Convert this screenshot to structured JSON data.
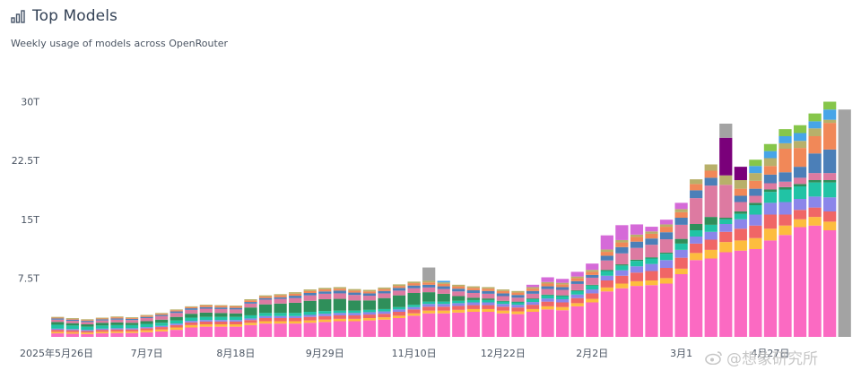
{
  "header": {
    "title": "Top Models",
    "subtitle": "Weekly usage of models across OpenRouter",
    "icon": "bar-chart-icon"
  },
  "watermark": {
    "text": "@想象研究所",
    "icon": "weibo-logo-icon"
  },
  "chart_data": {
    "type": "bar",
    "stacked": true,
    "title": "Top Models",
    "subtitle": "Weekly usage of models across OpenRouter",
    "xlabel": "",
    "ylabel": "",
    "ylim": [
      0,
      32
    ],
    "yticks": [
      {
        "value": 7.5,
        "label": "7.5T"
      },
      {
        "value": 15,
        "label": "15T"
      },
      {
        "value": 22.5,
        "label": "22.5T"
      },
      {
        "value": 30,
        "label": "30T"
      }
    ],
    "xtick_labels": [
      {
        "index": 0,
        "label": "2025年5月26日"
      },
      {
        "index": 6,
        "label": "7月7日"
      },
      {
        "index": 12,
        "label": "8月18日"
      },
      {
        "index": 18,
        "label": "9月29日"
      },
      {
        "index": 24,
        "label": "11月10日"
      },
      {
        "index": 30,
        "label": "12月22日"
      },
      {
        "index": 36,
        "label": "2月2日"
      },
      {
        "index": 42,
        "label": "3月1"
      },
      {
        "index": 48,
        "label": "4月27日"
      }
    ],
    "grid": false,
    "legend": "none",
    "palette": [
      "#fb6ac2",
      "#fdbd3e",
      "#f06666",
      "#8b86ea",
      "#21c3a5",
      "#2f8f5a",
      "#dd7aa1",
      "#4b7fb8",
      "#f18858",
      "#b8b06a",
      "#d56ad8",
      "#47a5e8",
      "#86c64a",
      "#7a007a",
      "#a3a3a3"
    ],
    "values": [
      [
        0.45,
        0.2,
        0.25,
        0.15,
        0.5,
        0.35,
        0.3,
        0.15,
        0.1,
        0.1
      ],
      [
        0.4,
        0.2,
        0.25,
        0.15,
        0.45,
        0.3,
        0.3,
        0.15,
        0.1,
        0.1
      ],
      [
        0.35,
        0.2,
        0.2,
        0.15,
        0.4,
        0.3,
        0.3,
        0.15,
        0.1,
        0.1
      ],
      [
        0.45,
        0.2,
        0.25,
        0.15,
        0.4,
        0.35,
        0.3,
        0.15,
        0.1,
        0.1
      ],
      [
        0.5,
        0.2,
        0.25,
        0.15,
        0.4,
        0.35,
        0.35,
        0.15,
        0.15,
        0.1
      ],
      [
        0.5,
        0.2,
        0.25,
        0.15,
        0.4,
        0.3,
        0.35,
        0.15,
        0.1,
        0.1
      ],
      [
        0.6,
        0.25,
        0.25,
        0.15,
        0.4,
        0.35,
        0.4,
        0.15,
        0.15,
        0.1
      ],
      [
        0.7,
        0.25,
        0.3,
        0.15,
        0.4,
        0.4,
        0.45,
        0.15,
        0.15,
        0.1
      ],
      [
        0.9,
        0.3,
        0.3,
        0.2,
        0.4,
        0.45,
        0.5,
        0.2,
        0.15,
        0.1
      ],
      [
        1.2,
        0.3,
        0.35,
        0.2,
        0.4,
        0.5,
        0.5,
        0.2,
        0.15,
        0.1
      ],
      [
        1.3,
        0.3,
        0.35,
        0.2,
        0.4,
        0.55,
        0.5,
        0.2,
        0.2,
        0.1
      ],
      [
        1.3,
        0.3,
        0.35,
        0.2,
        0.4,
        0.5,
        0.5,
        0.2,
        0.2,
        0.1
      ],
      [
        1.3,
        0.3,
        0.35,
        0.2,
        0.4,
        0.45,
        0.5,
        0.2,
        0.2,
        0.1
      ],
      [
        1.5,
        0.3,
        0.35,
        0.2,
        0.4,
        1.0,
        0.5,
        0.2,
        0.2,
        0.15
      ],
      [
        1.7,
        0.3,
        0.4,
        0.25,
        0.4,
        1.1,
        0.6,
        0.2,
        0.2,
        0.15
      ],
      [
        1.7,
        0.3,
        0.4,
        0.25,
        0.4,
        1.2,
        0.6,
        0.2,
        0.25,
        0.15
      ],
      [
        1.7,
        0.3,
        0.4,
        0.25,
        0.4,
        1.3,
        0.6,
        0.3,
        0.25,
        0.2
      ],
      [
        1.8,
        0.3,
        0.45,
        0.25,
        0.4,
        1.4,
        0.7,
        0.3,
        0.25,
        0.2
      ],
      [
        1.9,
        0.3,
        0.45,
        0.3,
        0.35,
        1.5,
        0.7,
        0.3,
        0.25,
        0.2
      ],
      [
        2.0,
        0.3,
        0.45,
        0.3,
        0.3,
        1.5,
        0.7,
        0.35,
        0.25,
        0.2
      ],
      [
        2.0,
        0.3,
        0.45,
        0.3,
        0.3,
        1.3,
        0.7,
        0.3,
        0.25,
        0.2
      ],
      [
        2.1,
        0.3,
        0.45,
        0.3,
        0.3,
        1.2,
        0.6,
        0.3,
        0.25,
        0.2
      ],
      [
        2.2,
        0.3,
        0.45,
        0.3,
        0.3,
        1.4,
        0.6,
        0.3,
        0.25,
        0.2
      ],
      [
        2.4,
        0.3,
        0.5,
        0.3,
        0.3,
        1.5,
        0.6,
        0.35,
        0.25,
        0.2
      ],
      [
        2.7,
        0.3,
        0.5,
        0.3,
        0.3,
        1.5,
        0.6,
        0.35,
        0.3,
        0.2
      ],
      [
        3.0,
        0.35,
        0.5,
        0.35,
        0.3,
        1.2,
        0.6,
        0.35,
        0.3,
        0.2,
        0,
        0,
        0,
        0,
        1.7
      ],
      [
        3.0,
        0.35,
        0.5,
        0.35,
        0.3,
        1.0,
        0.6,
        0.35,
        0.3,
        0.2,
        0,
        0.2
      ],
      [
        3.1,
        0.35,
        0.5,
        0.35,
        0.3,
        0.6,
        0.6,
        0.35,
        0.3,
        0.2
      ],
      [
        3.2,
        0.35,
        0.5,
        0.35,
        0.3,
        0.3,
        0.6,
        0.35,
        0.3,
        0.2
      ],
      [
        3.2,
        0.35,
        0.5,
        0.35,
        0.3,
        0.2,
        0.6,
        0.35,
        0.3,
        0.2
      ],
      [
        3.0,
        0.35,
        0.5,
        0.35,
        0.3,
        0.1,
        0.6,
        0.35,
        0.3,
        0.2
      ],
      [
        2.9,
        0.35,
        0.5,
        0.35,
        0.3,
        0.1,
        0.5,
        0.35,
        0.3,
        0.2
      ],
      [
        3.2,
        0.35,
        0.55,
        0.35,
        0.35,
        0.1,
        0.6,
        0.35,
        0.3,
        0.2,
        0.3
      ],
      [
        3.5,
        0.4,
        0.6,
        0.4,
        0.4,
        0.1,
        0.7,
        0.35,
        0.35,
        0.2,
        0.6
      ],
      [
        3.4,
        0.4,
        0.6,
        0.4,
        0.4,
        0.1,
        0.7,
        0.35,
        0.35,
        0.2,
        0.5
      ],
      [
        3.9,
        0.4,
        0.65,
        0.45,
        0.45,
        0.1,
        0.8,
        0.35,
        0.4,
        0.2,
        0.6
      ],
      [
        4.4,
        0.45,
        0.7,
        0.5,
        0.5,
        0.1,
        0.9,
        0.35,
        0.4,
        0.25,
        0.8
      ],
      [
        5.8,
        0.5,
        0.9,
        0.6,
        0.6,
        0.15,
        1.2,
        0.6,
        0.5,
        0.3,
        1.8
      ],
      [
        6.2,
        0.6,
        1.0,
        0.7,
        0.6,
        0.15,
        1.4,
        0.8,
        0.6,
        0.3,
        1.9
      ],
      [
        6.5,
        0.6,
        1.1,
        0.8,
        0.7,
        0.15,
        1.5,
        0.8,
        0.6,
        0.3,
        1.3
      ],
      [
        6.6,
        0.6,
        1.2,
        0.9,
        0.7,
        0.15,
        1.6,
        0.8,
        0.6,
        0.3,
        0.6
      ],
      [
        6.8,
        0.7,
        1.3,
        1.0,
        0.8,
        0.15,
        1.7,
        0.9,
        0.7,
        0.3,
        0.6
      ],
      [
        8.0,
        0.7,
        1.4,
        1.0,
        0.8,
        0.6,
        1.8,
        0.9,
        0.7,
        0.4,
        0.8
      ],
      [
        9.8,
        0.9,
        1.2,
        0.9,
        0.8,
        0.8,
        3.3,
        1.0,
        0.8,
        0.6
      ],
      [
        10.0,
        1.1,
        1.3,
        1.0,
        0.9,
        1.0,
        4.0,
        1.0,
        0.9,
        0.8
      ],
      [
        10.8,
        1.3,
        1.3,
        1.0,
        0.6,
        0.2,
        4.2,
        0,
        0,
        1.2,
        0,
        0,
        0,
        4.8,
        1.8
      ],
      [
        11.0,
        1.3,
        1.5,
        1.2,
        0.7,
        0.3,
        1.2,
        0.8,
        0.9,
        1.1,
        0,
        0,
        0,
        1.7
      ],
      [
        11.2,
        1.4,
        1.6,
        1.4,
        1.2,
        0.3,
        0.9,
        0.9,
        1.0,
        1.0,
        0,
        0.9,
        0.8
      ],
      [
        12.3,
        1.5,
        1.8,
        1.5,
        1.4,
        0.3,
        0.8,
        1.1,
        1.1,
        1.0,
        0,
        0.9,
        0.9
      ],
      [
        13.0,
        1.2,
        1.4,
        1.6,
        1.6,
        0.3,
        0.7,
        1.2,
        3.0,
        0.7,
        0,
        0.9,
        0.9
      ],
      [
        14.0,
        1.0,
        1.2,
        1.4,
        1.6,
        0.3,
        0.8,
        1.4,
        2.4,
        0.9,
        0,
        1.0,
        1.0
      ],
      [
        14.2,
        1.1,
        1.2,
        1.4,
        1.8,
        0.3,
        0.9,
        2.5,
        2.2,
        1.0,
        0,
        0.9,
        1.0
      ],
      [
        13.6,
        1.1,
        1.3,
        1.8,
        1.9,
        0.3,
        0.9,
        3.0,
        3.4,
        0.4,
        0,
        1.3,
        1.0
      ],
      [
        0,
        0,
        0,
        0,
        0,
        0,
        0,
        0,
        0,
        0,
        0,
        0,
        0,
        0,
        29.0
      ]
    ]
  }
}
